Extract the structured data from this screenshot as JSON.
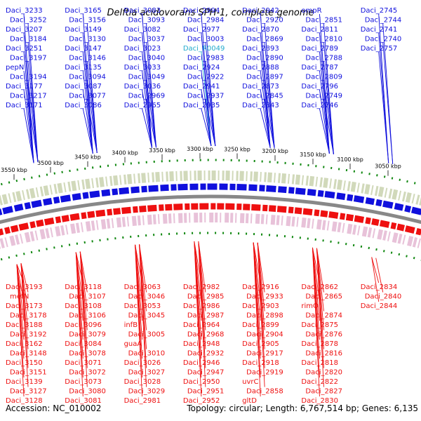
{
  "title": "Delftia acidovorans SPH-1, complete genome",
  "accession": "Accession: NC_010002",
  "summary": "Topology: circular; Length: 6,767,514 bp; Genes: 6,135",
  "colors": {
    "forward": "#1010dd",
    "reverse": "#ee1010",
    "rna": "#22aacc",
    "backbone": "#888888",
    "ticks": "#118811"
  },
  "axis_ticks": [
    "3550 kbp",
    "3500 kbp",
    "3450 kbp",
    "3400 kbp",
    "3350 kbp",
    "3300 kbp",
    "3250 kbp",
    "3200 kbp",
    "3150 kbp",
    "3100 kbp",
    "3050 kbp"
  ],
  "forward_labels": [
    "Daci_3233",
    "Daci_3252",
    "Daci_3207",
    "Daci_3184",
    "Daci_3251",
    "Daci_3197",
    "pepN",
    "Daci_3194",
    "Daci_3177",
    "Daci_3217",
    "Daci_3171",
    "Daci_3165",
    "Daci_3156",
    "Daci_3149",
    "Daci_3130",
    "Daci_3147",
    "Daci_3146",
    "Daci_3135",
    "Daci_3094",
    "Daci_3087",
    "Daci_3077",
    "Daci_3086",
    "Daci_3083",
    "Daci_3093",
    "Daci_3082",
    "Daci_3037",
    "Daci_3023",
    "Daci_3040",
    "Daci_3033",
    "Daci_3049",
    "Daci_3036",
    "Daci_2969",
    "Daci_2965",
    "Daci_2994",
    "Daci_2984",
    "Daci_2977",
    "Daci_3003",
    "Daci_R0049",
    "Daci_2983",
    "Daci_2924",
    "Daci_2922",
    "Daci_2941",
    "Daci_2937",
    "Daci_2935",
    "Daci_2942",
    "Daci_2920",
    "Daci_2870",
    "Daci_2869",
    "Daci_2893",
    "Daci_2890",
    "Daci_2888",
    "Daci_2897",
    "Daci_2873",
    "Daci_2845",
    "Daci_2843",
    "ompR",
    "Daci_2851",
    "Daci_2811",
    "Daci_2810",
    "Daci_2789",
    "Daci_2788",
    "Daci_2787",
    "Daci_2809",
    "Daci_2796",
    "Daci_2749",
    "Daci_2746",
    "Daci_2745",
    "Daci_2744",
    "Daci_2741",
    "Daci_2740",
    "Daci_2757"
  ],
  "reverse_labels": [
    "Daci_3193",
    "metN",
    "Daci_3173",
    "Daci_3178",
    "Daci_3188",
    "Daci_3192",
    "Daci_3162",
    "Daci_3148",
    "Daci_3150",
    "Daci_3151",
    "Daci_3139",
    "Daci_3127",
    "Daci_3128",
    "Daci_3118",
    "Daci_3107",
    "Daci_3108",
    "Daci_3106",
    "Daci_3096",
    "Daci_3079",
    "Daci_3084",
    "Daci_3078",
    "Daci_3071",
    "Daci_3072",
    "Daci_3073",
    "Daci_3080",
    "Daci_3081",
    "Daci_3063",
    "Daci_3046",
    "Daci_3053",
    "Daci_3045",
    "infB",
    "Daci_3005",
    "guaA",
    "Daci_3010",
    "Daci_3026",
    "Daci_3027",
    "Daci_3028",
    "Daci_3029",
    "Daci_2981",
    "Daci_2982",
    "Daci_2985",
    "Daci_2986",
    "Daci_2987",
    "Daci_2964",
    "Daci_2968",
    "Daci_2948",
    "Daci_2932",
    "Daci_2946",
    "Daci_2947",
    "Daci_2950",
    "Daci_2951",
    "Daci_2952",
    "Daci_2916",
    "Daci_2933",
    "Daci_2903",
    "Daci_2898",
    "Daci_2899",
    "Daci_2904",
    "Daci_2905",
    "Daci_2917",
    "Daci_2918",
    "Daci_2919",
    "uvrC",
    "Daci_2858",
    "gltD",
    "Daci_2862",
    "Daci_2865",
    "rimO",
    "Daci_2874",
    "Daci_2875",
    "Daci_2876",
    "Daci_2878",
    "Daci_2816",
    "Daci_2818",
    "Daci_2820",
    "Daci_2822",
    "Daci_2827",
    "Daci_2830",
    "Daci_2834",
    "Daci_2840",
    "Daci_2844"
  ]
}
